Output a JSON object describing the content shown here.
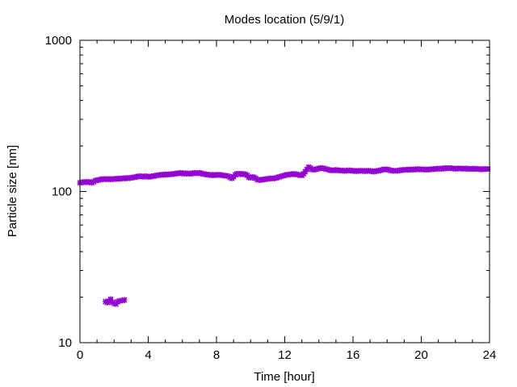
{
  "chart_data": {
    "type": "scatter",
    "title": "Modes location (5/9/1)",
    "xlabel": "Time [hour]",
    "ylabel": "Particle size [nm]",
    "xlim": [
      0,
      24
    ],
    "ylim": [
      10,
      1000
    ],
    "yscale": "log",
    "x_ticks": [
      0,
      4,
      8,
      12,
      16,
      20,
      24
    ],
    "x_tick_labels": [
      "0",
      "4",
      "8",
      "12",
      "16",
      "20",
      "24"
    ],
    "y_ticks": [
      10,
      100,
      1000
    ],
    "y_tick_labels": [
      "10",
      "100",
      "1000"
    ],
    "grid": false,
    "marker_color": "#9400d3",
    "series": [
      {
        "points": [
          [
            0.0,
            114
          ],
          [
            0.1,
            115
          ],
          [
            0.2,
            115
          ],
          [
            0.3,
            116
          ],
          [
            0.4,
            115
          ],
          [
            0.5,
            116
          ],
          [
            0.6,
            115
          ],
          [
            0.7,
            114
          ],
          [
            0.8,
            116
          ],
          [
            0.9,
            118
          ],
          [
            1.0,
            119
          ],
          [
            1.1,
            119
          ],
          [
            1.2,
            120
          ],
          [
            1.3,
            121
          ],
          [
            1.4,
            121
          ],
          [
            1.5,
            120
          ],
          [
            1.6,
            121
          ],
          [
            1.7,
            121
          ],
          [
            1.8,
            120
          ],
          [
            1.9,
            121
          ],
          [
            2.0,
            121
          ],
          [
            2.1,
            121
          ],
          [
            2.2,
            122
          ],
          [
            2.3,
            121
          ],
          [
            2.4,
            122
          ],
          [
            2.5,
            122
          ],
          [
            2.6,
            122
          ],
          [
            2.7,
            123
          ],
          [
            2.8,
            122
          ],
          [
            2.9,
            123
          ],
          [
            3.0,
            123
          ],
          [
            3.1,
            124
          ],
          [
            3.2,
            124
          ],
          [
            3.3,
            125
          ],
          [
            3.4,
            126
          ],
          [
            3.5,
            126
          ],
          [
            3.6,
            126
          ],
          [
            3.7,
            125
          ],
          [
            3.8,
            126
          ],
          [
            3.9,
            126
          ],
          [
            4.0,
            125
          ],
          [
            4.1,
            125
          ],
          [
            4.2,
            126
          ],
          [
            4.3,
            126
          ],
          [
            4.4,
            127
          ],
          [
            4.5,
            128
          ],
          [
            4.6,
            128
          ],
          [
            4.7,
            129
          ],
          [
            4.8,
            129
          ],
          [
            4.9,
            129
          ],
          [
            5.0,
            130
          ],
          [
            5.1,
            129
          ],
          [
            5.2,
            130
          ],
          [
            5.3,
            130
          ],
          [
            5.4,
            130
          ],
          [
            5.5,
            131
          ],
          [
            5.6,
            131
          ],
          [
            5.7,
            132
          ],
          [
            5.8,
            132
          ],
          [
            5.9,
            133
          ],
          [
            6.0,
            132
          ],
          [
            6.1,
            131
          ],
          [
            6.2,
            132
          ],
          [
            6.3,
            132
          ],
          [
            6.4,
            131
          ],
          [
            6.5,
            131
          ],
          [
            6.6,
            132
          ],
          [
            6.7,
            133
          ],
          [
            6.8,
            132
          ],
          [
            6.9,
            132
          ],
          [
            7.0,
            133
          ],
          [
            7.1,
            132
          ],
          [
            7.2,
            131
          ],
          [
            7.3,
            130
          ],
          [
            7.4,
            130
          ],
          [
            7.5,
            129
          ],
          [
            7.6,
            129
          ],
          [
            7.7,
            128
          ],
          [
            7.8,
            129
          ],
          [
            7.9,
            128
          ],
          [
            8.0,
            129
          ],
          [
            8.1,
            129
          ],
          [
            8.2,
            129
          ],
          [
            8.3,
            128
          ],
          [
            8.4,
            128
          ],
          [
            8.5,
            127
          ],
          [
            8.6,
            127
          ],
          [
            8.7,
            126
          ],
          [
            8.8,
            124
          ],
          [
            8.9,
            122
          ],
          [
            9.0,
            125
          ],
          [
            9.1,
            129
          ],
          [
            9.2,
            131
          ],
          [
            9.3,
            131
          ],
          [
            9.4,
            130
          ],
          [
            9.5,
            131
          ],
          [
            9.6,
            130
          ],
          [
            9.7,
            130
          ],
          [
            9.8,
            128
          ],
          [
            9.9,
            124
          ],
          [
            10.0,
            123
          ],
          [
            10.1,
            125
          ],
          [
            10.2,
            124
          ],
          [
            10.3,
            122
          ],
          [
            10.4,
            120
          ],
          [
            10.5,
            119
          ],
          [
            10.6,
            119
          ],
          [
            10.7,
            120
          ],
          [
            10.8,
            120
          ],
          [
            10.9,
            121
          ],
          [
            11.0,
            121
          ],
          [
            11.1,
            122
          ],
          [
            11.2,
            122
          ],
          [
            11.3,
            122
          ],
          [
            11.4,
            122
          ],
          [
            11.5,
            123
          ],
          [
            11.6,
            124
          ],
          [
            11.7,
            125
          ],
          [
            11.8,
            126
          ],
          [
            11.9,
            127
          ],
          [
            12.0,
            128
          ],
          [
            12.1,
            129
          ],
          [
            12.2,
            129
          ],
          [
            12.3,
            130
          ],
          [
            12.4,
            130
          ],
          [
            12.5,
            131
          ],
          [
            12.6,
            130
          ],
          [
            12.7,
            130
          ],
          [
            12.8,
            129
          ],
          [
            12.9,
            128
          ],
          [
            13.0,
            128
          ],
          [
            13.1,
            131
          ],
          [
            13.2,
            135
          ],
          [
            13.3,
            140
          ],
          [
            13.4,
            145
          ],
          [
            13.5,
            143
          ],
          [
            13.6,
            140
          ],
          [
            13.7,
            139
          ],
          [
            13.8,
            140
          ],
          [
            13.9,
            141
          ],
          [
            14.0,
            142
          ],
          [
            14.1,
            143
          ],
          [
            14.2,
            143
          ],
          [
            14.3,
            142
          ],
          [
            14.4,
            141
          ],
          [
            14.5,
            140
          ],
          [
            14.6,
            139
          ],
          [
            14.7,
            138
          ],
          [
            14.8,
            138
          ],
          [
            14.9,
            138
          ],
          [
            15.0,
            139
          ],
          [
            15.1,
            138
          ],
          [
            15.2,
            138
          ],
          [
            15.3,
            138
          ],
          [
            15.4,
            137
          ],
          [
            15.5,
            137
          ],
          [
            15.6,
            137
          ],
          [
            15.7,
            138
          ],
          [
            15.8,
            138
          ],
          [
            15.9,
            137
          ],
          [
            16.0,
            137
          ],
          [
            16.1,
            137
          ],
          [
            16.2,
            136
          ],
          [
            16.3,
            137
          ],
          [
            16.4,
            137
          ],
          [
            16.5,
            137
          ],
          [
            16.6,
            137
          ],
          [
            16.7,
            136
          ],
          [
            16.8,
            137
          ],
          [
            16.9,
            137
          ],
          [
            17.0,
            137
          ],
          [
            17.1,
            136
          ],
          [
            17.2,
            135
          ],
          [
            17.3,
            136
          ],
          [
            17.4,
            137
          ],
          [
            17.5,
            137
          ],
          [
            17.6,
            138
          ],
          [
            17.7,
            139
          ],
          [
            17.8,
            140
          ],
          [
            17.9,
            140
          ],
          [
            18.0,
            140
          ],
          [
            18.1,
            139
          ],
          [
            18.2,
            138
          ],
          [
            18.3,
            137
          ],
          [
            18.4,
            137
          ],
          [
            18.5,
            137
          ],
          [
            18.6,
            137
          ],
          [
            18.7,
            138
          ],
          [
            18.8,
            138
          ],
          [
            18.9,
            139
          ],
          [
            19.0,
            139
          ],
          [
            19.1,
            139
          ],
          [
            19.2,
            139
          ],
          [
            19.3,
            140
          ],
          [
            19.4,
            140
          ],
          [
            19.5,
            139
          ],
          [
            19.6,
            140
          ],
          [
            19.7,
            140
          ],
          [
            19.8,
            141
          ],
          [
            19.9,
            140
          ],
          [
            20.0,
            140
          ],
          [
            20.1,
            140
          ],
          [
            20.2,
            140
          ],
          [
            20.3,
            139
          ],
          [
            20.4,
            140
          ],
          [
            20.5,
            140
          ],
          [
            20.6,
            140
          ],
          [
            20.7,
            141
          ],
          [
            20.8,
            141
          ],
          [
            20.9,
            141
          ],
          [
            21.0,
            142
          ],
          [
            21.1,
            142
          ],
          [
            21.2,
            141
          ],
          [
            21.3,
            142
          ],
          [
            21.4,
            143
          ],
          [
            21.5,
            142
          ],
          [
            21.6,
            143
          ],
          [
            21.7,
            143
          ],
          [
            21.8,
            142
          ],
          [
            21.9,
            142
          ],
          [
            22.0,
            141
          ],
          [
            22.1,
            142
          ],
          [
            22.2,
            142
          ],
          [
            22.3,
            142
          ],
          [
            22.4,
            142
          ],
          [
            22.5,
            141
          ],
          [
            22.6,
            142
          ],
          [
            22.7,
            142
          ],
          [
            22.8,
            141
          ],
          [
            22.9,
            141
          ],
          [
            23.0,
            141
          ],
          [
            23.1,
            142
          ],
          [
            23.2,
            141
          ],
          [
            23.3,
            141
          ],
          [
            23.4,
            141
          ],
          [
            23.5,
            140
          ],
          [
            23.6,
            140
          ],
          [
            23.7,
            141
          ],
          [
            23.8,
            141
          ],
          [
            23.9,
            141
          ]
        ]
      },
      {
        "points": [
          [
            1.5,
            18.7
          ],
          [
            1.6,
            18.4
          ],
          [
            1.7,
            18.8
          ],
          [
            1.8,
            19.4
          ],
          [
            1.9,
            18.5
          ],
          [
            2.0,
            18.2
          ],
          [
            2.1,
            18.0
          ],
          [
            2.2,
            18.6
          ],
          [
            2.3,
            18.9
          ],
          [
            2.5,
            19.0
          ],
          [
            2.6,
            19.2
          ]
        ]
      }
    ]
  }
}
